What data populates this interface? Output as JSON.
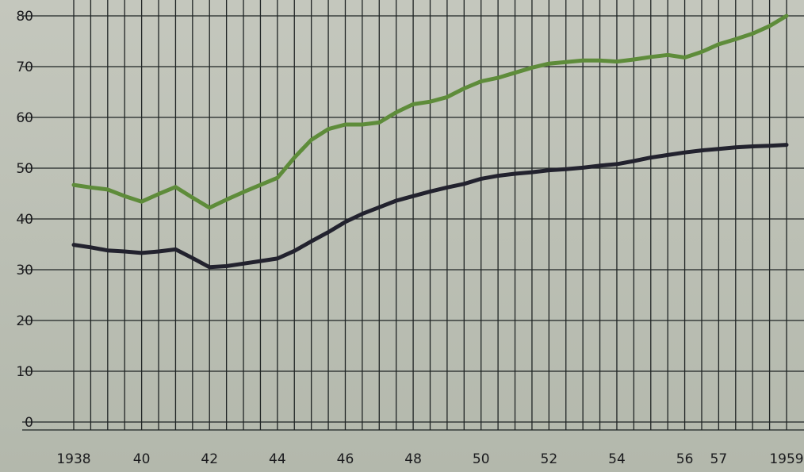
{
  "chart_data": {
    "type": "line",
    "title": "",
    "xlabel": "",
    "ylabel": "",
    "ylim": [
      0,
      80
    ],
    "grid": true,
    "legend": "none",
    "x_range": [
      1938,
      1959
    ],
    "y_ticks": [
      "80",
      "70",
      "60",
      "50",
      "40",
      "30",
      "20",
      "10",
      "0"
    ],
    "x_ticks": [
      {
        "x": 1938,
        "label": "1938"
      },
      {
        "x": 1940,
        "label": "40"
      },
      {
        "x": 1942,
        "label": "42"
      },
      {
        "x": 1944,
        "label": "44"
      },
      {
        "x": 1946,
        "label": "46"
      },
      {
        "x": 1948,
        "label": "48"
      },
      {
        "x": 1950,
        "label": "50"
      },
      {
        "x": 1952,
        "label": "52"
      },
      {
        "x": 1954,
        "label": "54"
      },
      {
        "x": 1956,
        "label": "56"
      },
      {
        "x": 1957,
        "label": "57"
      },
      {
        "x": 1959,
        "label": "1959"
      }
    ],
    "x": [
      1938,
      1938.5,
      1939,
      1939.5,
      1940,
      1940.5,
      1941,
      1941.5,
      1942,
      1942.5,
      1943,
      1943.5,
      1944,
      1944.5,
      1945,
      1945.5,
      1946,
      1946.5,
      1947,
      1947.5,
      1948,
      1948.5,
      1949,
      1949.5,
      1950,
      1950.5,
      1951,
      1951.5,
      1952,
      1952.5,
      1953,
      1953.5,
      1954,
      1954.5,
      1955,
      1955.5,
      1956,
      1956.5,
      1957,
      1957.5,
      1958,
      1958.5,
      1959
    ],
    "series": [
      {
        "color": "#5e8c3a",
        "values": [
          46.7,
          46.2,
          45.8,
          44.5,
          43.4,
          44.9,
          46.3,
          44.2,
          42.2,
          43.8,
          45.3,
          46.7,
          48.1,
          52.1,
          55.6,
          57.7,
          58.6,
          58.6,
          59.0,
          61.0,
          62.6,
          63.1,
          64.0,
          65.7,
          67.1,
          67.8,
          68.8,
          69.8,
          70.6,
          70.9,
          71.2,
          71.2,
          71.0,
          71.4,
          71.9,
          72.3,
          71.8,
          72.9,
          74.4,
          75.4,
          76.5,
          78.0,
          80.0
        ]
      },
      {
        "color": "#22222e",
        "values": [
          34.9,
          34.4,
          33.8,
          33.6,
          33.3,
          33.6,
          34.0,
          32.3,
          30.5,
          30.7,
          31.2,
          31.7,
          32.2,
          33.7,
          35.6,
          37.4,
          39.4,
          41.0,
          42.3,
          43.6,
          44.5,
          45.4,
          46.2,
          46.9,
          47.9,
          48.5,
          48.9,
          49.2,
          49.6,
          49.8,
          50.1,
          50.5,
          50.8,
          51.4,
          52.1,
          52.6,
          53.1,
          53.5,
          53.8,
          54.1,
          54.3,
          54.4,
          54.6
        ]
      }
    ]
  }
}
